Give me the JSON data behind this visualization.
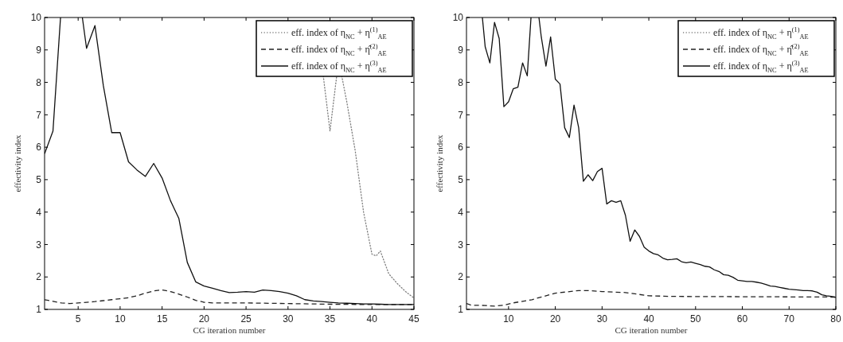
{
  "chart_data": [
    {
      "type": "line",
      "xlabel": "CG iteration number",
      "ylabel": "effectivity index",
      "xlim": [
        1,
        45
      ],
      "xticks": [
        5,
        10,
        15,
        20,
        25,
        30,
        35,
        40,
        45
      ],
      "ylim": [
        1,
        10
      ],
      "yticks": [
        1,
        2,
        3,
        4,
        5,
        6,
        7,
        8,
        9,
        10
      ],
      "grid": false,
      "legend": "top right",
      "series": [
        {
          "name": "eff. index of η$_{NC}$ + η$^{(1)}$$_{AE}$",
          "color": "#808080",
          "line_style": "dotted",
          "x": [
            34.2,
            35,
            35.8,
            36,
            36.4,
            37,
            38,
            39,
            40,
            40.5,
            41,
            42,
            43,
            44,
            45
          ],
          "values": [
            8.2,
            6.5,
            8.2,
            null,
            8.2,
            7.4,
            5.9,
            4.0,
            2.7,
            2.65,
            2.8,
            2.1,
            1.8,
            1.55,
            1.35
          ]
        },
        {
          "name": "eff. index of η$_{NC}$ + η̂$^{(2)}$$_{AE}$",
          "color": "#222222",
          "line_style": "dashed",
          "x": [
            1,
            2,
            3,
            4,
            5,
            6,
            7,
            8,
            9,
            10,
            11,
            12,
            13,
            14,
            15,
            16,
            17,
            18,
            19,
            20,
            21,
            25,
            30,
            35,
            40,
            45
          ],
          "values": [
            1.3,
            1.25,
            1.2,
            1.18,
            1.2,
            1.22,
            1.24,
            1.27,
            1.3,
            1.33,
            1.36,
            1.42,
            1.5,
            1.57,
            1.6,
            1.55,
            1.47,
            1.38,
            1.28,
            1.22,
            1.2,
            1.2,
            1.18,
            1.16,
            1.15,
            1.15
          ]
        },
        {
          "name": "eff. index of η$_{NC}$ + η$^{(3)}$$_{AE}$",
          "color": "#111111",
          "line_style": "solid",
          "x": [
            1,
            2,
            2.9,
            4,
            5.5,
            6,
            7,
            8,
            9,
            10,
            11,
            12,
            13,
            14,
            15,
            16,
            17,
            18,
            19,
            20,
            21,
            22,
            23,
            24,
            25,
            26,
            27,
            28,
            29,
            30,
            31,
            32,
            33,
            34,
            35,
            36,
            37,
            38,
            39,
            40,
            41,
            42,
            43,
            44,
            45
          ],
          "values": [
            5.8,
            6.5,
            10,
            null,
            10,
            9.05,
            9.75,
            7.9,
            6.45,
            6.45,
            5.55,
            5.3,
            5.1,
            5.5,
            5.05,
            4.35,
            3.8,
            2.45,
            1.85,
            1.72,
            1.65,
            1.58,
            1.52,
            1.53,
            1.55,
            1.53,
            1.6,
            1.58,
            1.55,
            1.5,
            1.42,
            1.3,
            1.26,
            1.24,
            1.22,
            1.2,
            1.19,
            1.18,
            1.17,
            1.17,
            1.16,
            1.15,
            1.15,
            1.15,
            1.15
          ]
        }
      ]
    },
    {
      "type": "line",
      "xlabel": "CG iteration number",
      "ylabel": "effectivity index",
      "xlim": [
        1,
        80
      ],
      "xticks": [
        10,
        20,
        30,
        40,
        50,
        60,
        70,
        80
      ],
      "ylim": [
        1,
        10
      ],
      "yticks": [
        1,
        2,
        3,
        4,
        5,
        6,
        7,
        8,
        9,
        10
      ],
      "grid": false,
      "legend": "top right",
      "series": [
        {
          "name": "eff. index of η$_{NC}$ + η$^{(1)}$$_{AE}$",
          "color": "#808080",
          "line_style": "dotted"
        },
        {
          "name": "eff. index of η$_{NC}$ + η̂$^{(2)}$$_{AE}$",
          "color": "#222222",
          "line_style": "dashed",
          "x": [
            1,
            2,
            5,
            7,
            9,
            11,
            15,
            20,
            25,
            27,
            30,
            35,
            38,
            40,
            45,
            80
          ],
          "values": [
            1.18,
            1.13,
            1.12,
            1.1,
            1.13,
            1.2,
            1.3,
            1.5,
            1.58,
            1.58,
            1.55,
            1.52,
            1.46,
            1.42,
            1.4,
            1.38
          ]
        },
        {
          "name": "eff. index of η$_{NC}$ + η$^{(3)}$$_{AE}$",
          "color": "#111111",
          "line_style": "solid",
          "x": [
            4.4,
            5,
            6,
            7,
            8,
            9,
            10,
            11,
            12,
            13,
            14,
            14.8,
            15.5,
            16.5,
            17,
            18,
            19,
            20,
            21,
            22,
            23,
            24,
            25,
            26,
            27,
            28,
            29,
            30,
            31,
            32,
            33,
            34,
            35,
            36,
            37,
            38,
            39,
            40,
            41,
            42,
            43,
            44,
            45,
            46,
            47,
            48,
            49,
            50,
            51,
            52,
            53,
            54,
            55,
            56,
            57,
            58,
            59,
            60,
            61,
            62,
            63,
            64,
            65,
            66,
            67,
            68,
            69,
            70,
            71,
            72,
            73,
            74,
            75,
            76,
            77,
            78,
            79,
            80
          ],
          "values": [
            10,
            9.1,
            8.6,
            9.85,
            9.35,
            7.25,
            7.4,
            7.8,
            7.85,
            8.6,
            8.2,
            10,
            null,
            10,
            9.4,
            8.5,
            9.4,
            8.1,
            7.95,
            6.6,
            6.3,
            7.3,
            6.6,
            4.95,
            5.15,
            4.97,
            5.25,
            5.35,
            4.25,
            4.35,
            4.3,
            4.35,
            3.9,
            3.1,
            3.45,
            3.25,
            2.92,
            2.8,
            2.72,
            2.68,
            2.58,
            2.53,
            2.54,
            2.56,
            2.47,
            2.44,
            2.46,
            2.42,
            2.38,
            2.33,
            2.31,
            2.22,
            2.17,
            2.07,
            2.05,
            1.99,
            1.9,
            1.88,
            1.86,
            1.86,
            1.84,
            1.81,
            1.77,
            1.72,
            1.71,
            1.68,
            1.65,
            1.62,
            1.61,
            1.6,
            1.58,
            1.58,
            1.57,
            1.53,
            1.45,
            1.42,
            1.4,
            1.37
          ]
        }
      ]
    }
  ]
}
